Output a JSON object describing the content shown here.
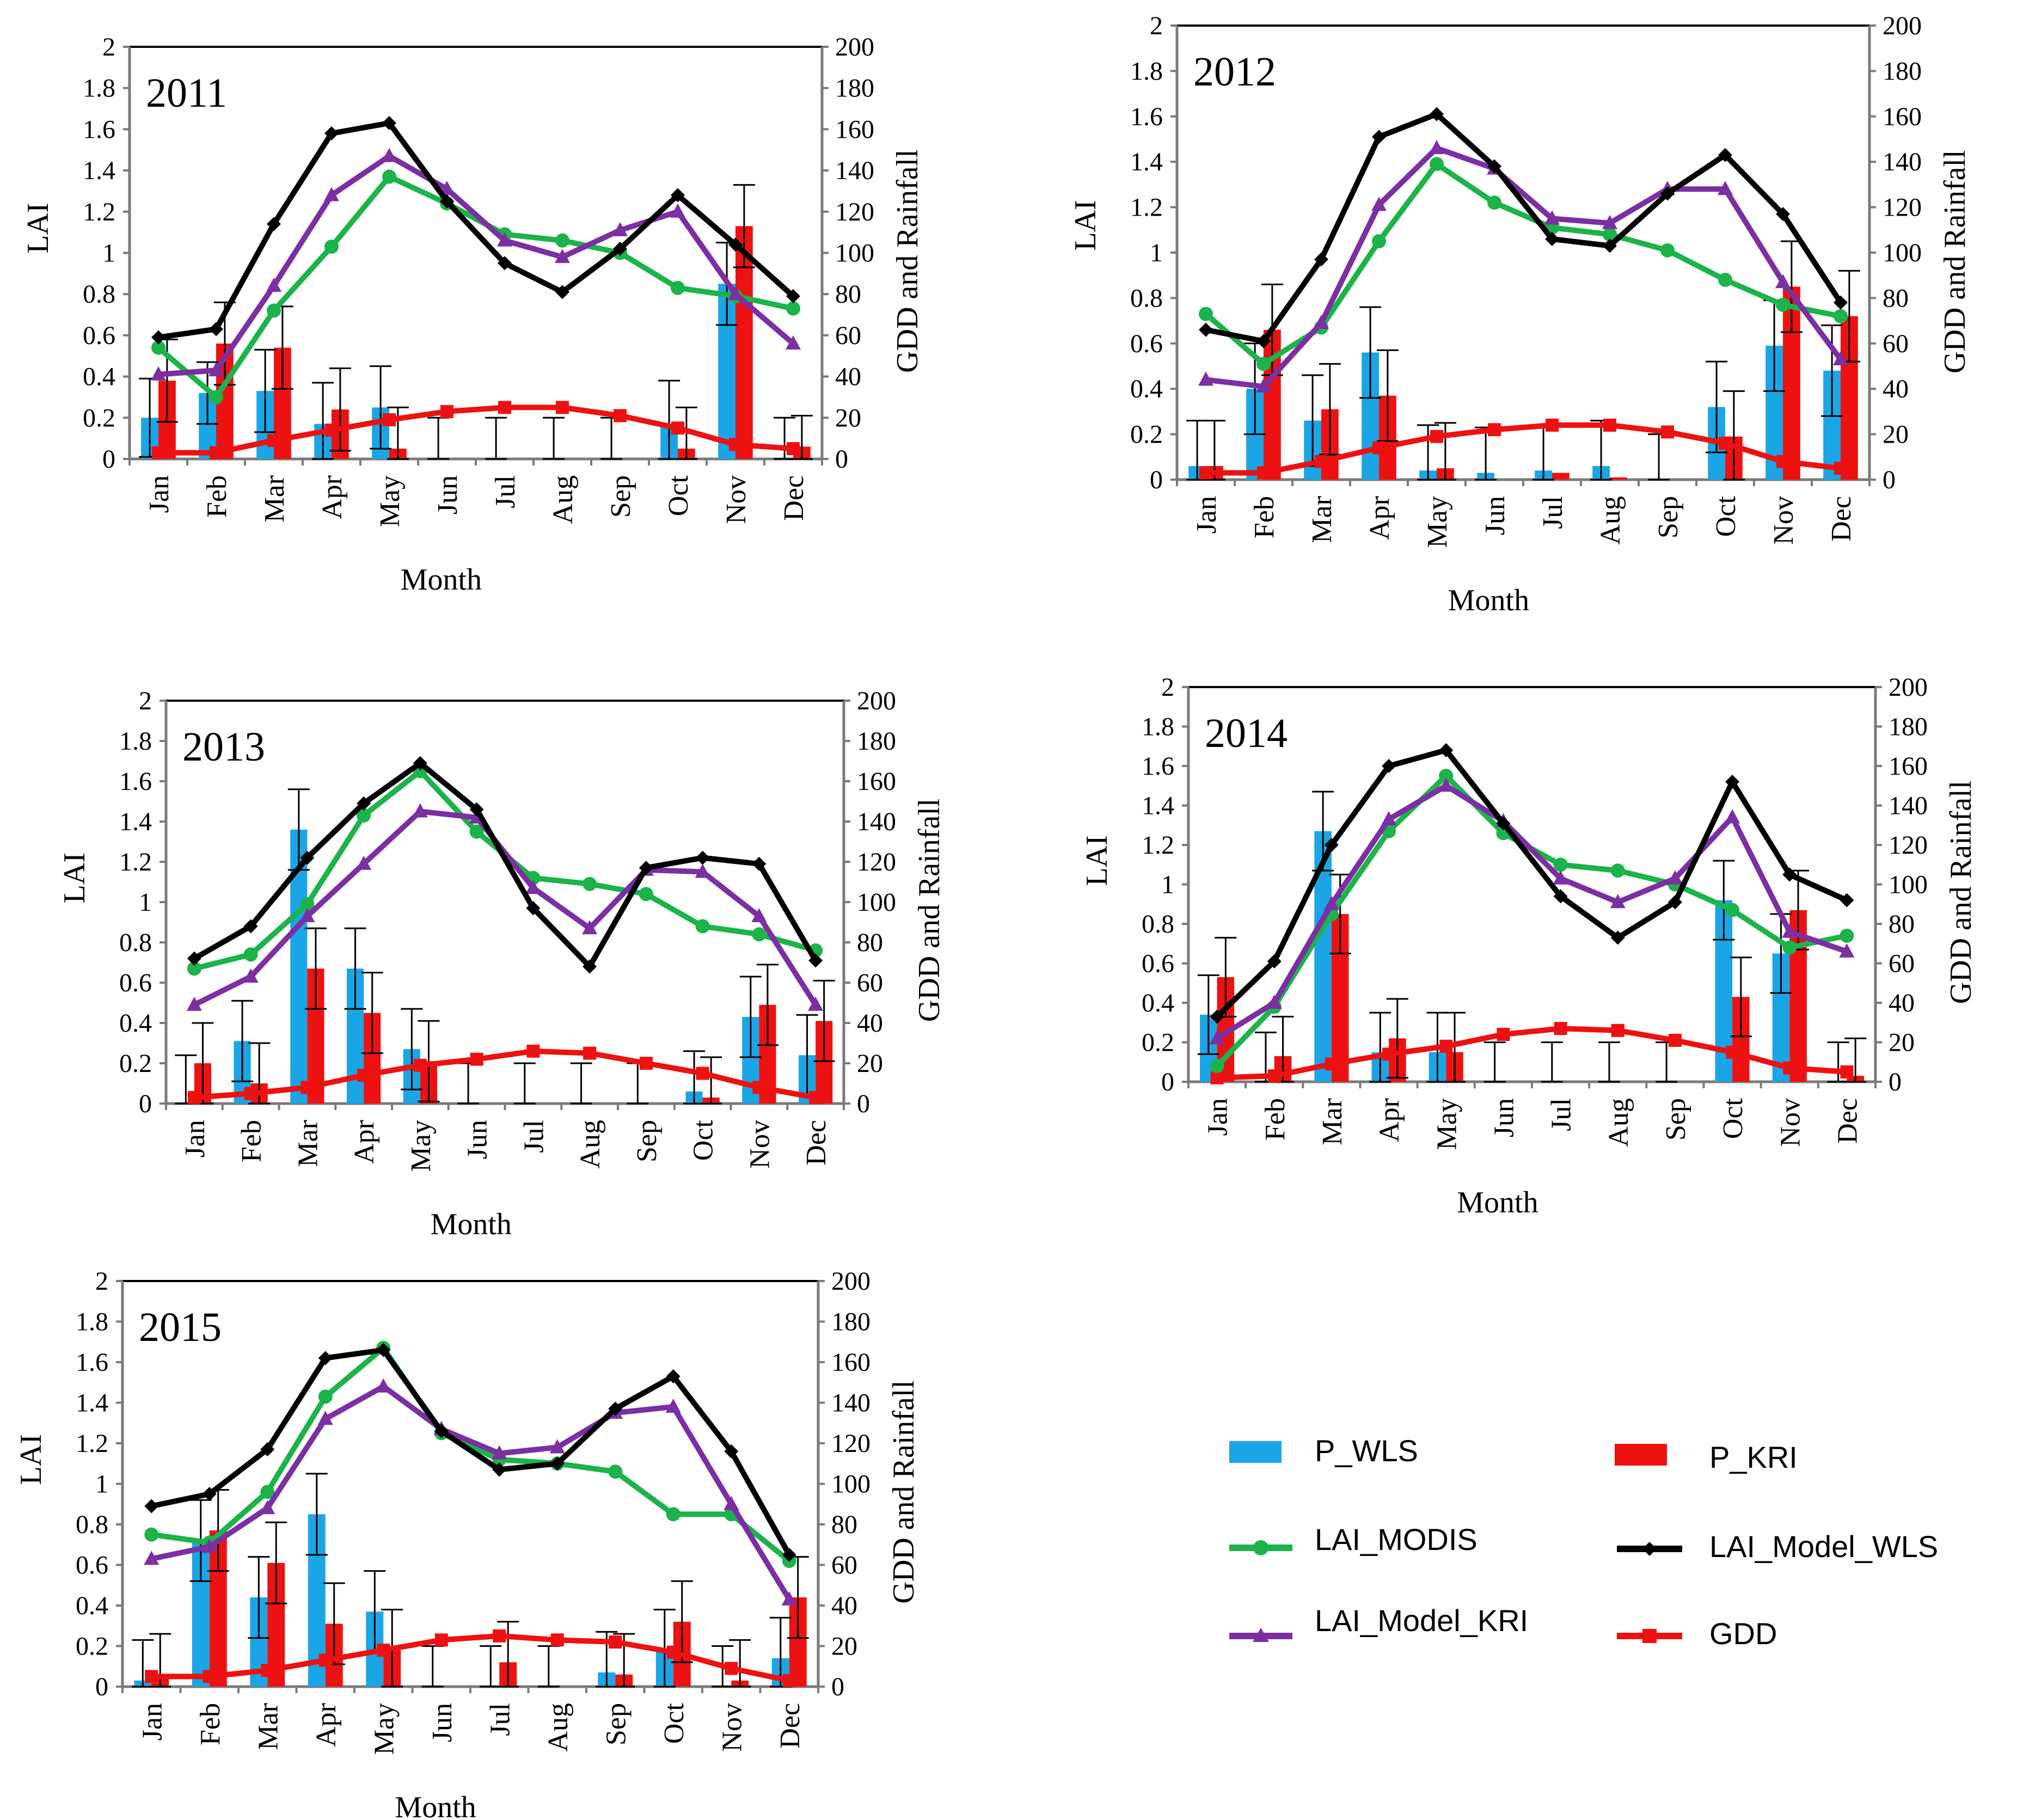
{
  "colors": {
    "P_WLS": "#1aa6e6",
    "P_KRI": "#ee1111",
    "LAI_MODIS": "#1cb34a",
    "LAI_Model_WLS": "#000000",
    "LAI_Model_KRI": "#7b2fa3",
    "GDD": "#ee1111",
    "errorbar": "#000000"
  },
  "legend": {
    "p_wls": "P_WLS",
    "p_kri": "P_KRI",
    "lai_modis": "LAI_MODIS",
    "lai_model_wls": "LAI_Model_WLS",
    "lai_model_kri": "LAI_Model_KRI",
    "gdd": "GDD"
  },
  "chart_data": [
    {
      "type": "bar+line",
      "title": "2011",
      "xlabel": "Month",
      "ylabel_left": "LAI",
      "ylabel_right": "GDD and Rainfall",
      "ylim_left": [
        0,
        2
      ],
      "ylim_right": [
        0,
        200
      ],
      "yticks_left": [
        "0",
        "0.2",
        "0.4",
        "0.6",
        "0.8",
        "1",
        "1.2",
        "1.4",
        "1.6",
        "1.8",
        "2"
      ],
      "yticks_right": [
        "0",
        "20",
        "40",
        "60",
        "80",
        "100",
        "120",
        "140",
        "160",
        "180",
        "200"
      ],
      "categories": [
        "Jan",
        "Feb",
        "Mar",
        "Apr",
        "May",
        "Jun",
        "Jul",
        "Aug",
        "Sep",
        "Oct",
        "Nov",
        "Dec"
      ],
      "series": [
        {
          "name": "P_WLS",
          "kind": "bar",
          "axis": "right",
          "values": [
            20,
            32,
            33,
            17,
            25,
            0,
            0,
            0,
            0,
            16,
            85,
            0
          ],
          "errors": [
            19,
            15,
            20,
            20,
            20,
            20,
            20,
            20,
            20,
            22,
            20,
            20
          ]
        },
        {
          "name": "P_KRI",
          "kind": "bar",
          "axis": "right",
          "values": [
            38,
            56,
            54,
            24,
            5,
            0,
            0,
            0,
            0,
            5,
            113,
            6
          ],
          "errors": [
            20,
            20,
            20,
            20,
            20,
            0,
            0,
            0,
            0,
            20,
            20,
            15
          ]
        },
        {
          "name": "LAI_MODIS",
          "kind": "line",
          "axis": "left",
          "values": [
            0.54,
            0.3,
            0.72,
            1.03,
            1.37,
            1.24,
            1.09,
            1.06,
            1.0,
            0.83,
            0.79,
            0.73
          ]
        },
        {
          "name": "LAI_Model_WLS",
          "kind": "line",
          "axis": "left",
          "values": [
            0.59,
            0.63,
            1.14,
            1.58,
            1.63,
            1.25,
            0.95,
            0.81,
            1.02,
            1.28,
            1.04,
            0.79
          ]
        },
        {
          "name": "LAI_Model_KRI",
          "kind": "line",
          "axis": "left",
          "values": [
            0.41,
            0.43,
            0.84,
            1.28,
            1.47,
            1.31,
            1.06,
            0.98,
            1.11,
            1.2,
            0.8,
            0.56
          ]
        },
        {
          "name": "GDD",
          "kind": "line",
          "axis": "right",
          "values": [
            3,
            3,
            9,
            14,
            19,
            23,
            25,
            25,
            21,
            15,
            7,
            5
          ]
        }
      ]
    },
    {
      "type": "bar+line",
      "title": "2012",
      "xlabel": "Month",
      "ylabel_left": "LAI",
      "ylabel_right": "GDD and Rainfall",
      "ylim_left": [
        0,
        2
      ],
      "ylim_right": [
        0,
        200
      ],
      "yticks_left": [
        "0",
        "0.2",
        "0.4",
        "0.6",
        "0.8",
        "1",
        "1.2",
        "1.4",
        "1.6",
        "1.8",
        "2"
      ],
      "yticks_right": [
        "0",
        "20",
        "40",
        "60",
        "80",
        "100",
        "120",
        "140",
        "160",
        "180",
        "200"
      ],
      "categories": [
        "Jan",
        "Feb",
        "Mar",
        "Apr",
        "May",
        "Jun",
        "Jul",
        "Aug",
        "Sep",
        "Oct",
        "Nov",
        "Dec"
      ],
      "series": [
        {
          "name": "P_WLS",
          "kind": "bar",
          "axis": "right",
          "values": [
            6,
            40,
            26,
            56,
            4,
            3,
            4,
            6,
            0,
            32,
            59,
            48
          ],
          "errors": [
            20,
            20,
            20,
            20,
            20,
            20,
            20,
            20,
            20,
            20,
            20,
            20
          ]
        },
        {
          "name": "P_KRI",
          "kind": "bar",
          "axis": "right",
          "values": [
            6,
            66,
            31,
            37,
            5,
            0,
            3,
            1,
            0,
            19,
            85,
            72
          ],
          "errors": [
            20,
            20,
            20,
            20,
            20,
            0,
            0,
            0,
            0,
            20,
            20,
            20
          ]
        },
        {
          "name": "LAI_MODIS",
          "kind": "line",
          "axis": "left",
          "values": [
            0.73,
            0.51,
            0.67,
            1.05,
            1.39,
            1.22,
            1.11,
            1.08,
            1.01,
            0.88,
            0.77,
            0.72
          ]
        },
        {
          "name": "LAI_Model_WLS",
          "kind": "line",
          "axis": "left",
          "values": [
            0.66,
            0.61,
            0.97,
            1.51,
            1.61,
            1.38,
            1.06,
            1.03,
            1.26,
            1.43,
            1.17,
            0.78
          ]
        },
        {
          "name": "LAI_Model_KRI",
          "kind": "line",
          "axis": "left",
          "values": [
            0.44,
            0.41,
            0.69,
            1.21,
            1.46,
            1.37,
            1.15,
            1.13,
            1.28,
            1.28,
            0.87,
            0.53
          ]
        },
        {
          "name": "GDD",
          "kind": "line",
          "axis": "right",
          "values": [
            3,
            3,
            8,
            14,
            19,
            22,
            24,
            24,
            21,
            16,
            8,
            5
          ]
        }
      ]
    },
    {
      "type": "bar+line",
      "title": "2013",
      "xlabel": "Month",
      "ylabel_left": "LAI",
      "ylabel_right": "GDD and Rainfall",
      "ylim_left": [
        0,
        2
      ],
      "ylim_right": [
        0,
        200
      ],
      "yticks_left": [
        "0",
        "0.2",
        "0.4",
        "0.6",
        "0.8",
        "1",
        "1.2",
        "1.4",
        "1.6",
        "1.8",
        "2"
      ],
      "yticks_right": [
        "0",
        "20",
        "40",
        "60",
        "80",
        "100",
        "120",
        "140",
        "160",
        "180",
        "200"
      ],
      "categories": [
        "Jan",
        "Feb",
        "Mar",
        "Apr",
        "May",
        "Jun",
        "Jul",
        "Aug",
        "Sep",
        "Oct",
        "Nov",
        "Dec"
      ],
      "series": [
        {
          "name": "P_WLS",
          "kind": "bar",
          "axis": "right",
          "values": [
            0,
            31,
            136,
            67,
            27,
            0,
            0,
            0,
            0,
            6,
            43,
            24
          ],
          "errors": [
            24,
            20,
            20,
            20,
            20,
            20,
            20,
            20,
            20,
            20,
            20,
            20
          ]
        },
        {
          "name": "P_KRI",
          "kind": "bar",
          "axis": "right",
          "values": [
            20,
            10,
            67,
            45,
            21,
            0,
            0,
            0,
            0,
            3,
            49,
            41
          ],
          "errors": [
            20,
            20,
            20,
            20,
            20,
            0,
            0,
            0,
            0,
            20,
            20,
            20
          ]
        },
        {
          "name": "LAI_MODIS",
          "kind": "line",
          "axis": "left",
          "values": [
            0.67,
            0.74,
            0.99,
            1.43,
            1.65,
            1.35,
            1.12,
            1.09,
            1.04,
            0.88,
            0.84,
            0.76
          ]
        },
        {
          "name": "LAI_Model_WLS",
          "kind": "line",
          "axis": "left",
          "values": [
            0.72,
            0.88,
            1.22,
            1.49,
            1.69,
            1.46,
            0.97,
            0.68,
            1.17,
            1.22,
            1.19,
            0.71
          ]
        },
        {
          "name": "LAI_Model_KRI",
          "kind": "line",
          "axis": "left",
          "values": [
            0.49,
            0.63,
            0.93,
            1.19,
            1.45,
            1.42,
            1.07,
            0.87,
            1.16,
            1.15,
            0.93,
            0.49
          ]
        },
        {
          "name": "GDD",
          "kind": "line",
          "axis": "right",
          "values": [
            3,
            5,
            8,
            14,
            19,
            22,
            26,
            25,
            20,
            15,
            8,
            3
          ]
        }
      ]
    },
    {
      "type": "bar+line",
      "title": "2014",
      "xlabel": "Month",
      "ylabel_left": "LAI",
      "ylabel_right": "GDD and Rainfall",
      "ylim_left": [
        0,
        2
      ],
      "ylim_right": [
        0,
        200
      ],
      "yticks_left": [
        "0",
        "0.2",
        "0.4",
        "0.6",
        "0.8",
        "1",
        "1.2",
        "1.4",
        "1.6",
        "1.8",
        "2"
      ],
      "yticks_right": [
        "0",
        "20",
        "40",
        "60",
        "80",
        "100",
        "120",
        "140",
        "160",
        "180",
        "200"
      ],
      "categories": [
        "Jan",
        "Feb",
        "Mar",
        "Apr",
        "May",
        "Jun",
        "Jul",
        "Aug",
        "Sep",
        "Oct",
        "Nov",
        "Dec"
      ],
      "series": [
        {
          "name": "P_WLS",
          "kind": "bar",
          "axis": "right",
          "values": [
            34,
            0,
            127,
            15,
            15,
            0,
            0,
            0,
            0,
            92,
            65,
            0
          ],
          "errors": [
            20,
            25,
            20,
            20,
            20,
            20,
            20,
            20,
            20,
            20,
            20,
            20
          ]
        },
        {
          "name": "P_KRI",
          "kind": "bar",
          "axis": "right",
          "values": [
            53,
            13,
            85,
            22,
            15,
            0,
            0,
            0,
            0,
            43,
            87,
            3
          ],
          "errors": [
            20,
            20,
            20,
            20,
            20,
            0,
            0,
            0,
            0,
            20,
            20,
            19
          ]
        },
        {
          "name": "LAI_MODIS",
          "kind": "line",
          "axis": "left",
          "values": [
            0.08,
            0.38,
            0.85,
            1.27,
            1.55,
            1.26,
            1.1,
            1.07,
            1.0,
            0.87,
            0.68,
            0.74
          ]
        },
        {
          "name": "LAI_Model_WLS",
          "kind": "line",
          "axis": "left",
          "values": [
            0.33,
            0.61,
            1.2,
            1.6,
            1.68,
            1.31,
            0.94,
            0.73,
            0.91,
            1.52,
            1.05,
            0.92
          ]
        },
        {
          "name": "LAI_Model_KRI",
          "kind": "line",
          "axis": "left",
          "values": [
            0.22,
            0.4,
            0.9,
            1.33,
            1.5,
            1.32,
            1.03,
            0.91,
            1.03,
            1.34,
            0.76,
            0.66
          ]
        },
        {
          "name": "GDD",
          "kind": "line",
          "axis": "right",
          "values": [
            2,
            3,
            9,
            14,
            18,
            24,
            27,
            26,
            21,
            15,
            7,
            5
          ]
        }
      ]
    },
    {
      "type": "bar+line",
      "title": "2015",
      "xlabel": "Month",
      "ylabel_left": "LAI",
      "ylabel_right": "GDD and Rainfall",
      "ylim_left": [
        0,
        2
      ],
      "ylim_right": [
        0,
        200
      ],
      "yticks_left": [
        "0",
        "0.2",
        "0.4",
        "0.6",
        "0.8",
        "1",
        "1.2",
        "1.4",
        "1.6",
        "1.8",
        "2"
      ],
      "yticks_right": [
        "0",
        "20",
        "40",
        "60",
        "80",
        "100",
        "120",
        "140",
        "160",
        "180",
        "200"
      ],
      "categories": [
        "Jan",
        "Feb",
        "Mar",
        "Apr",
        "May",
        "Jun",
        "Jul",
        "Aug",
        "Sep",
        "Oct",
        "Nov",
        "Dec"
      ],
      "series": [
        {
          "name": "P_WLS",
          "kind": "bar",
          "axis": "right",
          "values": [
            3,
            72,
            44,
            85,
            37,
            0,
            0,
            0,
            7,
            18,
            0,
            14
          ],
          "errors": [
            20,
            20,
            20,
            20,
            20,
            20,
            20,
            20,
            20,
            20,
            20,
            20
          ]
        },
        {
          "name": "P_KRI",
          "kind": "bar",
          "axis": "right",
          "values": [
            6,
            77,
            61,
            31,
            18,
            0,
            12,
            0,
            6,
            32,
            3,
            44
          ],
          "errors": [
            20,
            20,
            20,
            20,
            20,
            0,
            20,
            0,
            20,
            20,
            20,
            20
          ]
        },
        {
          "name": "LAI_MODIS",
          "kind": "line",
          "axis": "left",
          "values": [
            0.75,
            0.71,
            0.96,
            1.43,
            1.67,
            1.25,
            1.12,
            1.1,
            1.06,
            0.85,
            0.85,
            0.62
          ]
        },
        {
          "name": "LAI_Model_WLS",
          "kind": "line",
          "axis": "left",
          "values": [
            0.89,
            0.95,
            1.17,
            1.62,
            1.66,
            1.26,
            1.07,
            1.1,
            1.37,
            1.53,
            1.16,
            0.65
          ]
        },
        {
          "name": "LAI_Model_KRI",
          "kind": "line",
          "axis": "left",
          "values": [
            0.63,
            0.69,
            0.88,
            1.32,
            1.48,
            1.27,
            1.15,
            1.18,
            1.35,
            1.38,
            0.9,
            0.43
          ]
        },
        {
          "name": "GDD",
          "kind": "line",
          "axis": "right",
          "values": [
            5,
            5,
            8,
            13,
            18,
            23,
            25,
            23,
            22,
            17,
            9,
            3
          ]
        }
      ]
    }
  ]
}
